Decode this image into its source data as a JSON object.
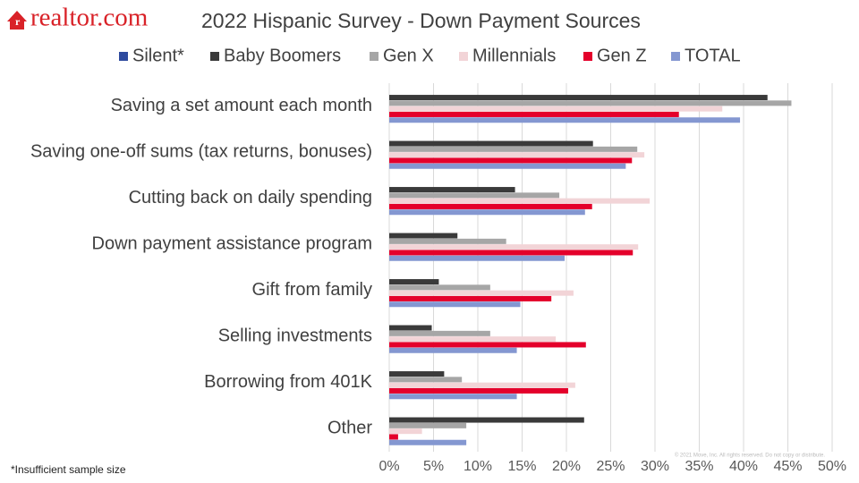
{
  "logo": "realtor.com",
  "footnote": "*Insufficient sample size",
  "copyright": "© 2021 Move, Inc. All rights reserved. Do not copy or distribute.",
  "chart_data": {
    "type": "hbar",
    "title": "2022 Hispanic Survey - Down Payment Sources",
    "categories": [
      "Saving a set amount each month",
      "Saving one-off sums (tax returns, bonuses)",
      "Cutting back on daily spending",
      "Down payment assistance program",
      "Gift from family",
      "Selling investments",
      "Borrowing from 401K",
      "Other"
    ],
    "series": [
      {
        "name": "Silent*",
        "color": "#2e4a9e",
        "values": [
          null,
          null,
          null,
          null,
          null,
          null,
          null,
          null
        ]
      },
      {
        "name": "Baby Boomers",
        "color": "#3a3a3a",
        "values": [
          42.7,
          23.0,
          14.2,
          7.7,
          5.6,
          4.8,
          6.2,
          22.0
        ]
      },
      {
        "name": "Gen X",
        "color": "#a6a6a6",
        "values": [
          45.4,
          28.0,
          19.2,
          13.2,
          11.4,
          11.4,
          8.2,
          8.7
        ]
      },
      {
        "name": "Millennials",
        "color": "#f2d4d7",
        "values": [
          37.6,
          28.8,
          29.4,
          28.1,
          20.8,
          18.8,
          21.0,
          3.7
        ]
      },
      {
        "name": "Gen Z",
        "color": "#e4002b",
        "values": [
          32.7,
          27.4,
          22.9,
          27.5,
          18.3,
          22.2,
          20.2,
          1.0
        ]
      },
      {
        "name": "TOTAL",
        "color": "#8497d1",
        "values": [
          39.6,
          26.7,
          22.1,
          19.8,
          14.8,
          14.4,
          14.4,
          8.7
        ]
      }
    ],
    "xlim": [
      0,
      50
    ],
    "xticks": [
      {
        "value": 0,
        "label": "0%"
      },
      {
        "value": 5,
        "label": "5%"
      },
      {
        "value": 10,
        "label": "10%"
      },
      {
        "value": 15,
        "label": "15%"
      },
      {
        "value": 20,
        "label": "20%"
      },
      {
        "value": 25,
        "label": "25%"
      },
      {
        "value": 30,
        "label": "30%"
      },
      {
        "value": 35,
        "label": "35%"
      },
      {
        "value": 40,
        "label": "40%"
      },
      {
        "value": 45,
        "label": "45%"
      },
      {
        "value": 50,
        "label": "50%"
      }
    ],
    "grid": true
  }
}
